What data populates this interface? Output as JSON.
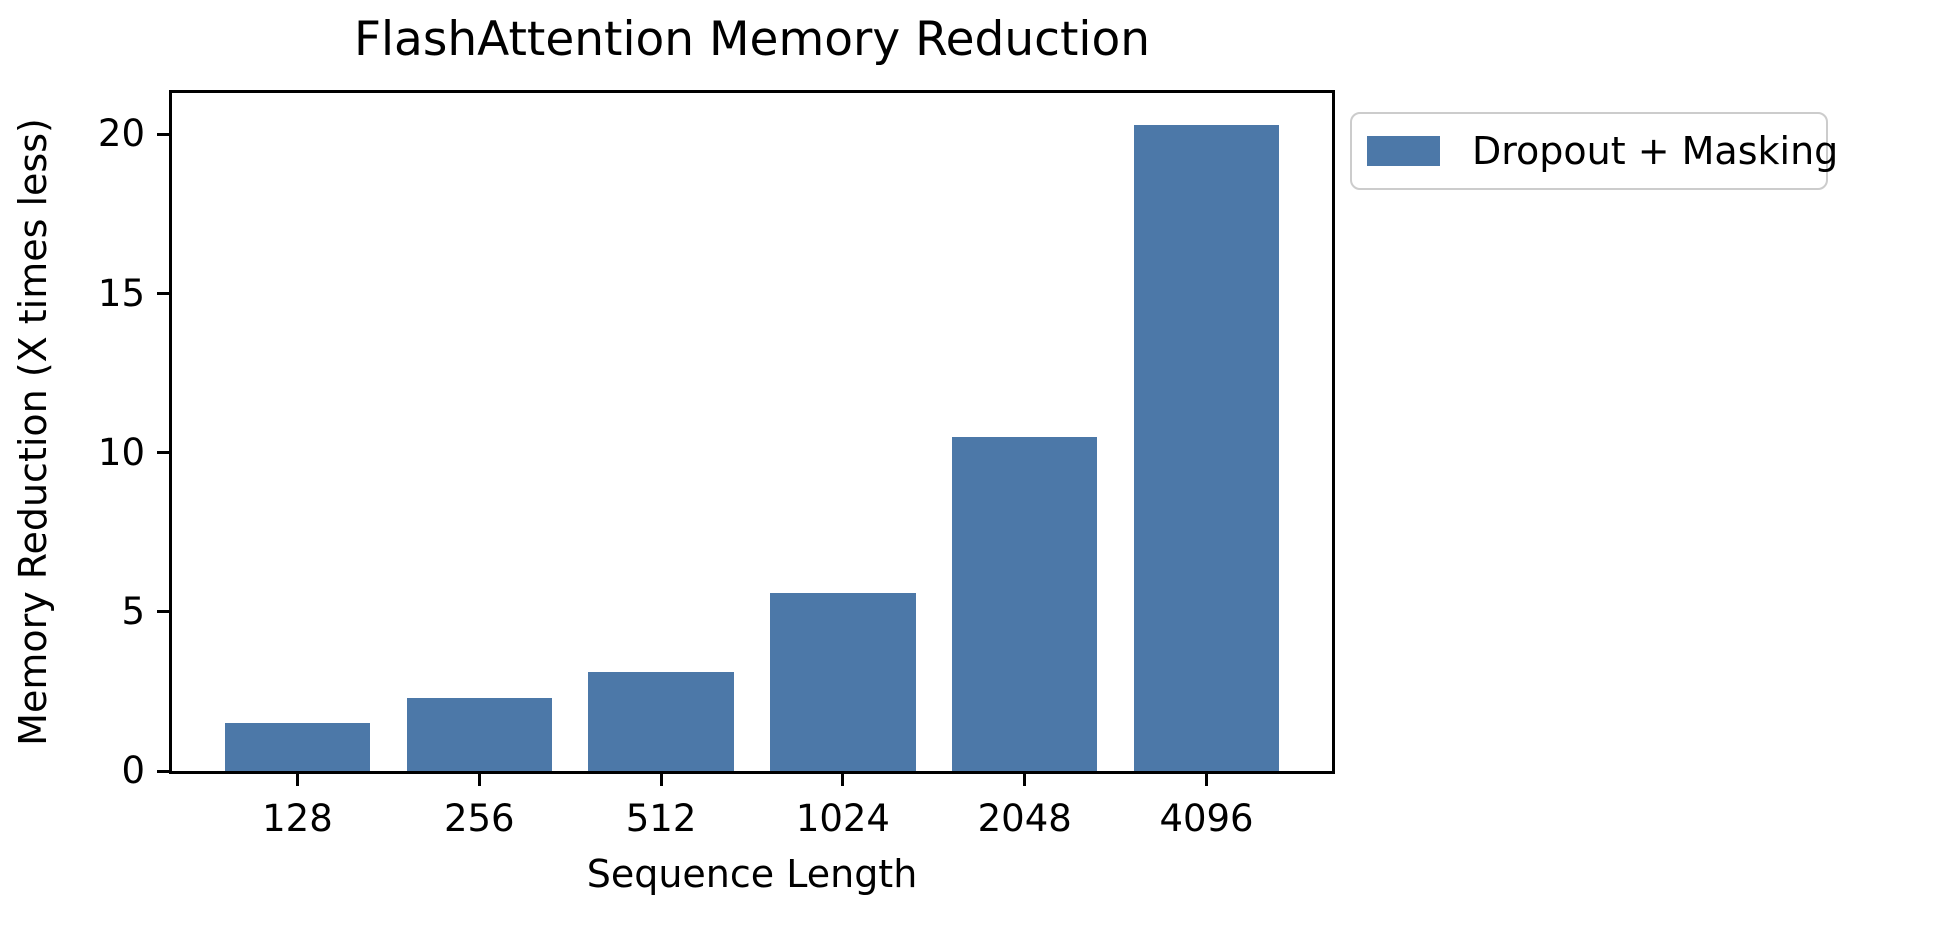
{
  "chart_data": {
    "type": "bar",
    "title": "FlashAttention Memory Reduction",
    "xlabel": "Sequence Length",
    "ylabel": "Memory Reduction (X times less)",
    "categories": [
      "128",
      "256",
      "512",
      "1024",
      "2048",
      "4096"
    ],
    "series": [
      {
        "name": "Dropout + Masking",
        "values": [
          1.5,
          2.3,
          3.1,
          5.6,
          10.5,
          20.3
        ]
      }
    ],
    "ylim": [
      0,
      21.3
    ],
    "yticks": [
      0,
      5,
      10,
      15,
      20
    ],
    "grid": false,
    "legend_position": "outside-upper-right"
  },
  "legend": {
    "label": "Dropout + Masking"
  },
  "colors": {
    "bar": "#4c78a8",
    "text": "#000000",
    "spine": "#000000",
    "legend_border": "#cccccc",
    "background": "#ffffff"
  }
}
